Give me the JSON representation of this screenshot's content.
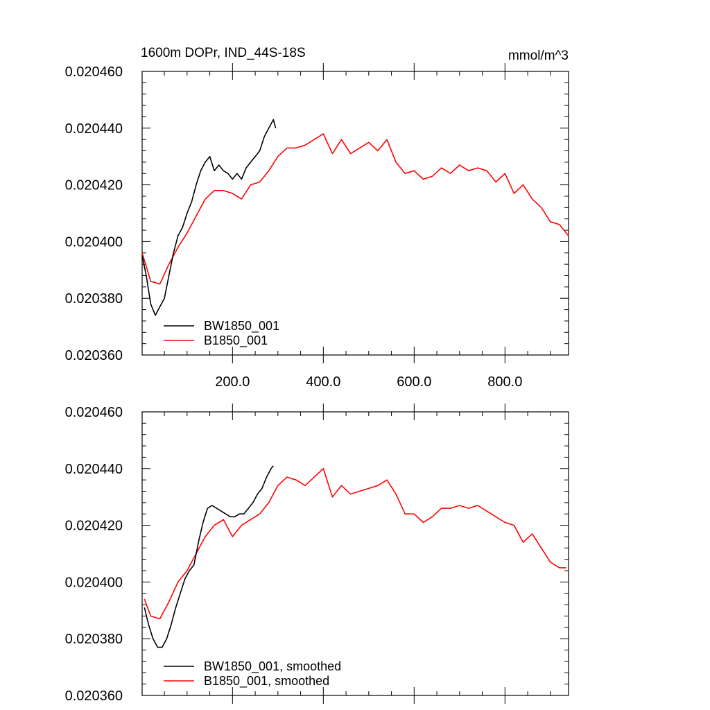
{
  "chart_data": [
    {
      "type": "line",
      "title": "1600m DOPr, IND_44S-18S",
      "units": "mmol/m^3",
      "xlabel": "",
      "ylabel": "",
      "xlim": [
        1,
        940
      ],
      "ylim": [
        0.02036,
        0.02046
      ],
      "y_tick_labels": [
        "0.020360",
        "0.020380",
        "0.020400",
        "0.020420",
        "0.020440",
        "0.020460"
      ],
      "x_tick_labels": [
        "200.0",
        "400.0",
        "600.0",
        "800.0"
      ],
      "legend_position": "bottom-left",
      "series": [
        {
          "name": "BW1850_001",
          "color": "#000000",
          "x": [
            1,
            10,
            20,
            30,
            40,
            50,
            60,
            70,
            80,
            90,
            100,
            110,
            120,
            130,
            140,
            150,
            160,
            170,
            180,
            190,
            200,
            210,
            220,
            230,
            240,
            250,
            260,
            270,
            280,
            290,
            295
          ],
          "y": [
            0.020395,
            0.020388,
            0.020378,
            0.020374,
            0.020377,
            0.02038,
            0.020388,
            0.020396,
            0.020402,
            0.020405,
            0.02041,
            0.020414,
            0.02042,
            0.020425,
            0.020428,
            0.02043,
            0.020425,
            0.020427,
            0.020425,
            0.020424,
            0.020422,
            0.020424,
            0.020422,
            0.020426,
            0.020428,
            0.02043,
            0.020432,
            0.020437,
            0.02044,
            0.020443,
            0.02044
          ]
        },
        {
          "name": "B1850_001",
          "color": "#ff0000",
          "x": [
            1,
            20,
            40,
            60,
            80,
            100,
            120,
            140,
            160,
            180,
            200,
            220,
            240,
            260,
            280,
            300,
            320,
            340,
            360,
            380,
            400,
            420,
            440,
            460,
            480,
            500,
            520,
            540,
            560,
            580,
            600,
            620,
            640,
            660,
            680,
            700,
            720,
            740,
            760,
            780,
            800,
            820,
            840,
            860,
            880,
            900,
            920,
            940
          ],
          "y": [
            0.020396,
            0.020386,
            0.020385,
            0.020392,
            0.020398,
            0.020403,
            0.020409,
            0.020415,
            0.020418,
            0.020418,
            0.020417,
            0.020415,
            0.02042,
            0.020421,
            0.020425,
            0.02043,
            0.020433,
            0.020433,
            0.020434,
            0.020436,
            0.020438,
            0.020431,
            0.020436,
            0.020431,
            0.020433,
            0.020435,
            0.020432,
            0.020436,
            0.020428,
            0.020424,
            0.020425,
            0.020422,
            0.020423,
            0.020426,
            0.020424,
            0.020427,
            0.020425,
            0.020426,
            0.020425,
            0.020421,
            0.020424,
            0.020417,
            0.02042,
            0.020415,
            0.020412,
            0.020407,
            0.020406,
            0.020402
          ]
        }
      ]
    },
    {
      "type": "line",
      "title": "",
      "xlabel": "",
      "ylabel": "",
      "xlim": [
        1,
        940
      ],
      "ylim": [
        0.02036,
        0.02046
      ],
      "y_tick_labels": [
        "0.020360",
        "0.020380",
        "0.020400",
        "0.020420",
        "0.020440",
        "0.020460"
      ],
      "legend_position": "bottom-left",
      "series": [
        {
          "name": "BW1850_001, smoothed",
          "color": "#000000",
          "x": [
            6,
            15,
            25,
            35,
            45,
            55,
            65,
            75,
            85,
            95,
            105,
            115,
            125,
            135,
            145,
            155,
            165,
            175,
            185,
            195,
            205,
            215,
            225,
            235,
            245,
            255,
            265,
            275,
            285,
            290
          ],
          "y": [
            0.020391,
            0.020385,
            0.02038,
            0.020377,
            0.020377,
            0.02038,
            0.020385,
            0.020391,
            0.020396,
            0.020401,
            0.020404,
            0.020406,
            0.020414,
            0.020421,
            0.020426,
            0.020427,
            0.020426,
            0.020425,
            0.020424,
            0.020423,
            0.020423,
            0.020424,
            0.020424,
            0.020426,
            0.020428,
            0.020431,
            0.020433,
            0.020437,
            0.02044,
            0.020441
          ]
        },
        {
          "name": "B1850_001, smoothed",
          "color": "#ff0000",
          "x": [
            6,
            20,
            40,
            60,
            80,
            100,
            120,
            140,
            160,
            180,
            200,
            220,
            240,
            260,
            280,
            300,
            320,
            340,
            360,
            380,
            400,
            420,
            440,
            460,
            480,
            500,
            520,
            540,
            560,
            580,
            600,
            620,
            640,
            660,
            680,
            700,
            720,
            740,
            760,
            780,
            800,
            820,
            840,
            860,
            880,
            900,
            920,
            935
          ],
          "y": [
            0.020394,
            0.020388,
            0.020387,
            0.020393,
            0.0204,
            0.020404,
            0.02041,
            0.020416,
            0.02042,
            0.020422,
            0.020416,
            0.02042,
            0.020422,
            0.020424,
            0.020428,
            0.020434,
            0.020437,
            0.020436,
            0.020434,
            0.020437,
            0.02044,
            0.02043,
            0.020434,
            0.020431,
            0.020432,
            0.020433,
            0.020434,
            0.020436,
            0.020431,
            0.020424,
            0.020424,
            0.020421,
            0.020423,
            0.020426,
            0.020426,
            0.020427,
            0.020426,
            0.020427,
            0.020425,
            0.020423,
            0.020421,
            0.02042,
            0.020414,
            0.020417,
            0.020412,
            0.020407,
            0.020405,
            0.020405
          ]
        }
      ]
    }
  ]
}
